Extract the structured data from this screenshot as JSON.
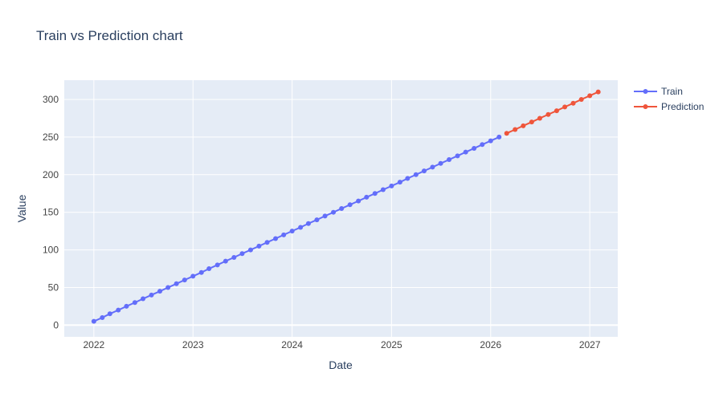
{
  "chart_data": {
    "type": "line",
    "title": "Train vs Prediction chart",
    "xlabel": "Date",
    "ylabel": "Value",
    "x_ticks": [
      "2022",
      "2023",
      "2024",
      "2025",
      "2026",
      "2027"
    ],
    "y_ticks": [
      0,
      50,
      100,
      150,
      200,
      250,
      300
    ],
    "xlim": [
      "2021-09-14",
      "2027-04-14"
    ],
    "ylim": [
      -15.6,
      325.6
    ],
    "grid": true,
    "legend_position": "top-right",
    "series": [
      {
        "name": "Train",
        "color": "#636efa",
        "x": [
          "2022-01-01",
          "2022-02-01",
          "2022-03-01",
          "2022-04-01",
          "2022-05-01",
          "2022-06-01",
          "2022-07-01",
          "2022-08-01",
          "2022-09-01",
          "2022-10-01",
          "2022-11-01",
          "2022-12-01",
          "2023-01-01",
          "2023-02-01",
          "2023-03-01",
          "2023-04-01",
          "2023-05-01",
          "2023-06-01",
          "2023-07-01",
          "2023-08-01",
          "2023-09-01",
          "2023-10-01",
          "2023-11-01",
          "2023-12-01",
          "2024-01-01",
          "2024-02-01",
          "2024-03-01",
          "2024-04-01",
          "2024-05-01",
          "2024-06-01",
          "2024-07-01",
          "2024-08-01",
          "2024-09-01",
          "2024-10-01",
          "2024-11-01",
          "2024-12-01",
          "2025-01-01",
          "2025-02-01",
          "2025-03-01",
          "2025-04-01",
          "2025-05-01",
          "2025-06-01",
          "2025-07-01",
          "2025-08-01",
          "2025-09-01",
          "2025-10-01",
          "2025-11-01",
          "2025-12-01",
          "2026-01-01",
          "2026-02-01"
        ],
        "y": [
          5,
          10,
          15,
          20,
          25,
          30,
          35,
          40,
          45,
          50,
          55,
          60,
          65,
          70,
          75,
          80,
          85,
          90,
          95,
          100,
          105,
          110,
          115,
          120,
          125,
          130,
          135,
          140,
          145,
          150,
          155,
          160,
          165,
          170,
          175,
          180,
          185,
          190,
          195,
          200,
          205,
          210,
          215,
          220,
          225,
          230,
          235,
          240,
          245,
          250
        ]
      },
      {
        "name": "Prediction",
        "color": "#ef553b",
        "x": [
          "2026-03-01",
          "2026-04-01",
          "2026-05-01",
          "2026-06-01",
          "2026-07-01",
          "2026-08-01",
          "2026-09-01",
          "2026-10-01",
          "2026-11-01",
          "2026-12-01",
          "2027-01-01",
          "2027-02-01"
        ],
        "y": [
          255,
          260,
          265,
          270,
          275,
          280,
          285,
          290,
          295,
          300,
          305,
          310
        ]
      }
    ]
  },
  "style": {
    "plot_bg": "#e5ecf6",
    "grid_color": "#ffffff",
    "text_color": "#2a3f5f",
    "tick_color": "#444444"
  }
}
